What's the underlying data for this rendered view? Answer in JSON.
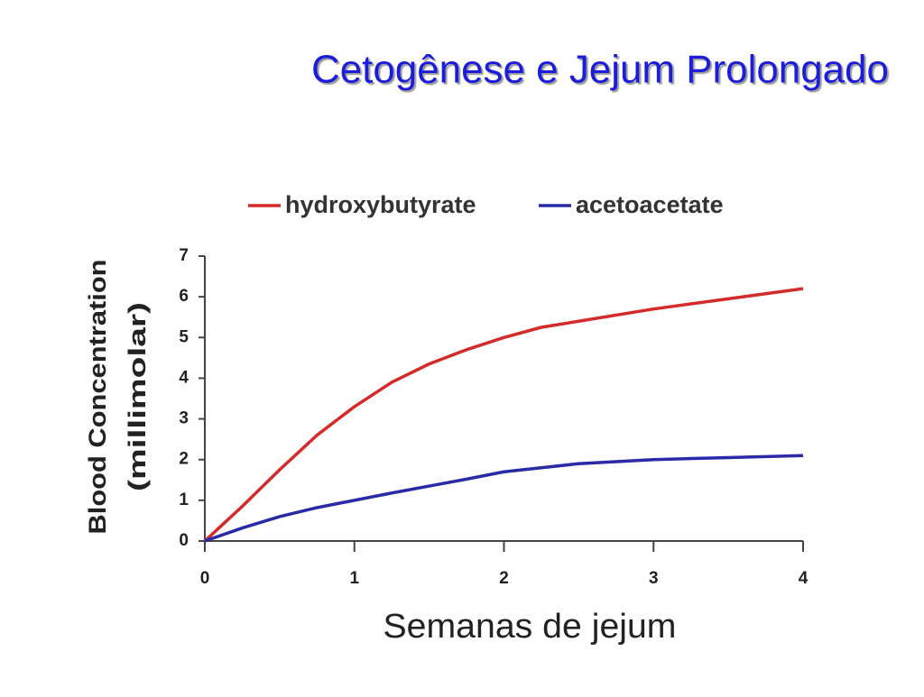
{
  "chart_data": {
    "type": "line",
    "title": "Cetogênese e Jejum Prolongado",
    "x_label": "Semanas de jejum",
    "y_label": [
      "Blood Concentration",
      "(millimolar)"
    ],
    "x": [
      0,
      0.25,
      0.5,
      0.75,
      1,
      1.25,
      1.5,
      1.75,
      2,
      2.25,
      2.5,
      3,
      3.5,
      4
    ],
    "series": [
      {
        "name": "hydroxybutyrate",
        "color": "#d42a2a",
        "values": [
          0,
          0.85,
          1.75,
          2.6,
          3.3,
          3.9,
          4.35,
          4.7,
          5.0,
          5.25,
          5.4,
          5.7,
          5.95,
          6.2
        ]
      },
      {
        "name": "acetoacetate",
        "color": "#2a2aa8",
        "values": [
          0,
          0.32,
          0.6,
          0.82,
          1.0,
          1.18,
          1.35,
          1.52,
          1.7,
          1.8,
          1.9,
          2.0,
          2.05,
          2.1
        ]
      }
    ],
    "xlim": [
      0,
      4
    ],
    "xticks": [
      0,
      1,
      2,
      3,
      4
    ],
    "ylim": [
      0,
      7
    ],
    "yticks": [
      0,
      1,
      2,
      3,
      4,
      5,
      6,
      7
    ],
    "grid": false
  }
}
